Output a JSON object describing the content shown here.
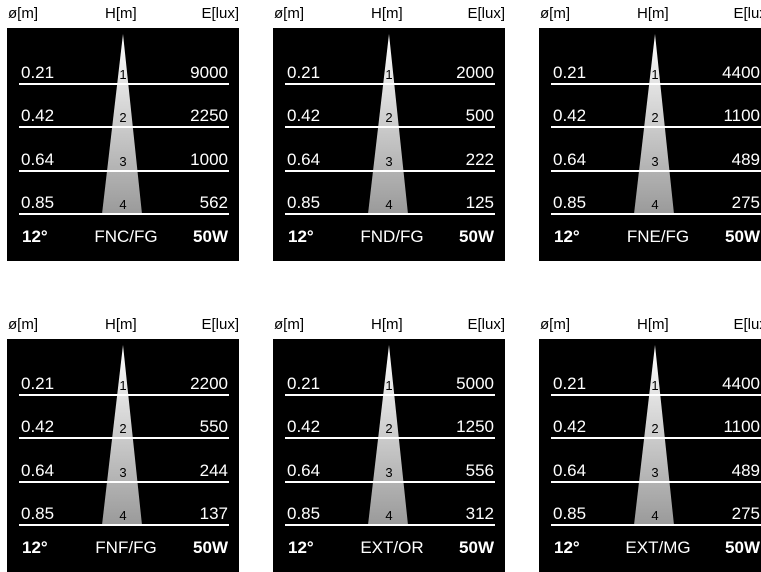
{
  "headers": {
    "diameter": "ø[m]",
    "height": "H[m]",
    "illuminance": "E[lux]"
  },
  "colors": {
    "panel": "#000000",
    "text": "#ffffff",
    "beam_top": "#ffffff",
    "beam_bottom": "#9a9a9a"
  },
  "panels": [
    {
      "angle": "12°",
      "model": "FNC/FG",
      "power": "50W",
      "rows": [
        {
          "h": "1",
          "d": "0.21",
          "e": "9000"
        },
        {
          "h": "2",
          "d": "0.42",
          "e": "2250"
        },
        {
          "h": "3",
          "d": "0.64",
          "e": "1000"
        },
        {
          "h": "4",
          "d": "0.85",
          "e": "562"
        }
      ]
    },
    {
      "angle": "12°",
      "model": "FND/FG",
      "power": "50W",
      "rows": [
        {
          "h": "1",
          "d": "0.21",
          "e": "2000"
        },
        {
          "h": "2",
          "d": "0.42",
          "e": "500"
        },
        {
          "h": "3",
          "d": "0.64",
          "e": "222"
        },
        {
          "h": "4",
          "d": "0.85",
          "e": "125"
        }
      ]
    },
    {
      "angle": "12°",
      "model": "FNE/FG",
      "power": "50W",
      "rows": [
        {
          "h": "1",
          "d": "0.21",
          "e": "4400"
        },
        {
          "h": "2",
          "d": "0.42",
          "e": "1100"
        },
        {
          "h": "3",
          "d": "0.64",
          "e": "489"
        },
        {
          "h": "4",
          "d": "0.85",
          "e": "275"
        }
      ]
    },
    {
      "angle": "12°",
      "model": "FNF/FG",
      "power": "50W",
      "rows": [
        {
          "h": "1",
          "d": "0.21",
          "e": "2200"
        },
        {
          "h": "2",
          "d": "0.42",
          "e": "550"
        },
        {
          "h": "3",
          "d": "0.64",
          "e": "244"
        },
        {
          "h": "4",
          "d": "0.85",
          "e": "137"
        }
      ]
    },
    {
      "angle": "12°",
      "model": "EXT/OR",
      "power": "50W",
      "rows": [
        {
          "h": "1",
          "d": "0.21",
          "e": "5000"
        },
        {
          "h": "2",
          "d": "0.42",
          "e": "1250"
        },
        {
          "h": "3",
          "d": "0.64",
          "e": "556"
        },
        {
          "h": "4",
          "d": "0.85",
          "e": "312"
        }
      ]
    },
    {
      "angle": "12°",
      "model": "EXT/MG",
      "power": "50W",
      "rows": [
        {
          "h": "1",
          "d": "0.21",
          "e": "4400"
        },
        {
          "h": "2",
          "d": "0.42",
          "e": "1100"
        },
        {
          "h": "3",
          "d": "0.64",
          "e": "489"
        },
        {
          "h": "4",
          "d": "0.85",
          "e": "275"
        }
      ]
    }
  ]
}
